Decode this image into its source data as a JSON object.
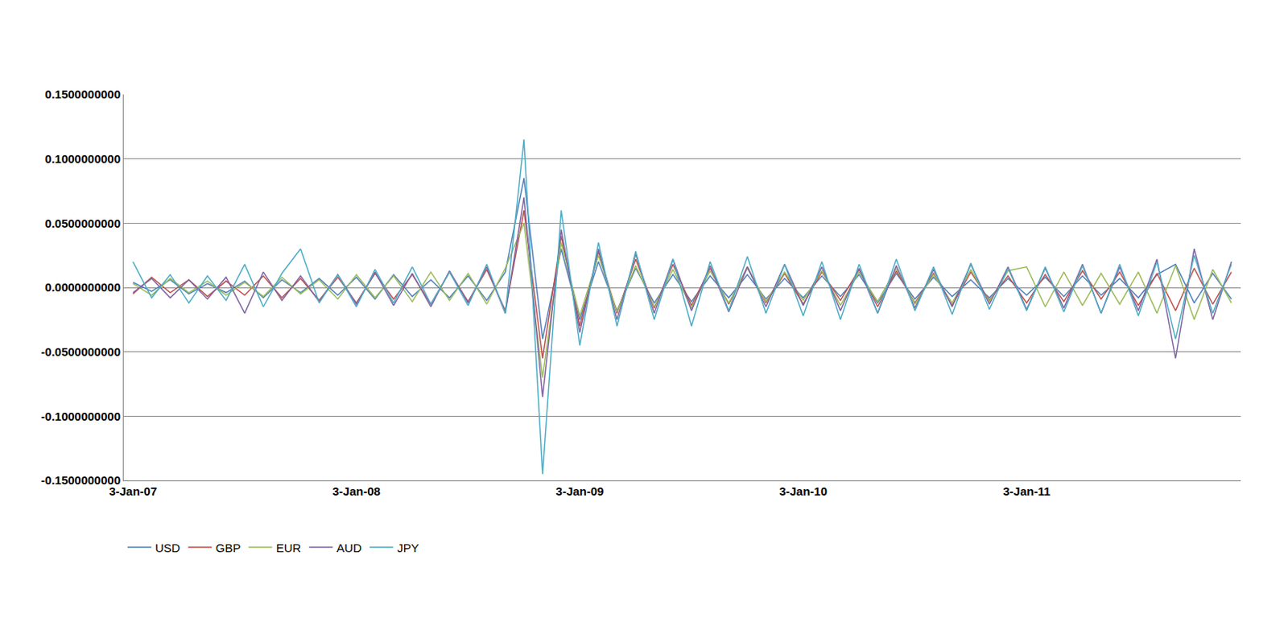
{
  "chart_data": {
    "type": "line",
    "categories": [
      "3-Jan-07",
      null,
      null,
      null,
      null,
      null,
      null,
      null,
      null,
      null,
      null,
      null,
      "3-Jan-08",
      null,
      null,
      null,
      null,
      null,
      null,
      null,
      null,
      null,
      null,
      null,
      "3-Jan-09",
      null,
      null,
      null,
      null,
      null,
      null,
      null,
      null,
      null,
      null,
      null,
      "3-Jan-10",
      null,
      null,
      null,
      null,
      null,
      null,
      null,
      null,
      null,
      null,
      null,
      "3-Jan-11",
      null,
      null,
      null,
      null,
      null,
      null,
      null,
      null,
      null,
      null,
      null
    ],
    "series": [
      {
        "name": "USD",
        "color": "#4f81bd",
        "values": [
          0.004,
          -0.003,
          0.006,
          -0.005,
          0.003,
          -0.004,
          0.005,
          -0.008,
          0.006,
          -0.004,
          0.007,
          -0.006,
          0.008,
          -0.009,
          0.01,
          -0.007,
          0.006,
          -0.008,
          0.009,
          -0.01,
          0.012,
          0.085,
          -0.04,
          0.03,
          -0.025,
          0.02,
          -0.018,
          0.015,
          -0.012,
          0.01,
          -0.011,
          0.009,
          -0.008,
          0.01,
          -0.009,
          0.007,
          -0.008,
          0.009,
          -0.007,
          0.01,
          -0.012,
          0.011,
          -0.009,
          0.008,
          -0.007,
          0.006,
          -0.008,
          0.007,
          -0.006,
          0.008,
          -0.007,
          0.009,
          -0.006,
          0.007,
          -0.008,
          0.01,
          0.018,
          -0.012,
          0.011,
          -0.009
        ]
      },
      {
        "name": "GBP",
        "color": "#c0504d",
        "values": [
          -0.005,
          0.008,
          -0.004,
          0.006,
          -0.007,
          0.005,
          -0.006,
          0.009,
          -0.008,
          0.007,
          -0.01,
          0.008,
          -0.012,
          0.011,
          -0.009,
          0.01,
          -0.013,
          0.012,
          -0.011,
          0.014,
          -0.018,
          0.06,
          -0.055,
          0.04,
          -0.03,
          0.028,
          -0.02,
          0.022,
          -0.016,
          0.018,
          -0.014,
          0.015,
          -0.013,
          0.016,
          -0.012,
          0.011,
          -0.013,
          0.012,
          -0.01,
          0.014,
          -0.015,
          0.013,
          -0.012,
          0.011,
          -0.014,
          0.012,
          -0.01,
          0.009,
          -0.012,
          0.01,
          -0.011,
          0.013,
          -0.009,
          0.012,
          -0.014,
          0.011,
          -0.018,
          0.015,
          -0.013,
          0.012
        ]
      },
      {
        "name": "EUR",
        "color": "#9bbb59",
        "values": [
          0.003,
          -0.006,
          0.007,
          -0.004,
          0.005,
          -0.006,
          0.004,
          -0.007,
          0.008,
          -0.005,
          0.006,
          -0.009,
          0.01,
          -0.008,
          0.009,
          -0.011,
          0.012,
          -0.01,
          0.011,
          -0.013,
          0.015,
          0.05,
          -0.07,
          0.035,
          -0.022,
          0.025,
          -0.019,
          0.017,
          -0.015,
          0.014,
          -0.016,
          0.013,
          -0.012,
          0.015,
          -0.011,
          0.012,
          -0.01,
          0.013,
          -0.014,
          0.012,
          -0.011,
          0.015,
          -0.013,
          0.01,
          -0.012,
          0.014,
          -0.011,
          0.013,
          0.016,
          -0.015,
          0.012,
          -0.014,
          0.011,
          -0.013,
          0.012,
          -0.02,
          0.017,
          -0.025,
          0.014,
          -0.012
        ]
      },
      {
        "name": "AUD",
        "color": "#8064a2",
        "values": [
          -0.004,
          0.007,
          -0.008,
          0.006,
          -0.009,
          0.008,
          -0.02,
          0.012,
          -0.01,
          0.009,
          -0.011,
          0.01,
          -0.013,
          0.012,
          -0.014,
          0.011,
          -0.015,
          0.013,
          -0.012,
          0.016,
          -0.02,
          0.07,
          -0.085,
          0.045,
          -0.035,
          0.03,
          -0.025,
          0.026,
          -0.02,
          0.022,
          -0.018,
          0.017,
          -0.019,
          0.016,
          -0.015,
          0.018,
          -0.014,
          0.016,
          -0.018,
          0.015,
          -0.02,
          0.017,
          -0.016,
          0.014,
          -0.015,
          0.018,
          -0.013,
          0.016,
          -0.017,
          0.015,
          -0.016,
          0.018,
          -0.02,
          0.016,
          -0.018,
          0.022,
          -0.055,
          0.03,
          -0.025,
          0.02
        ]
      },
      {
        "name": "JPY",
        "color": "#4bacc6",
        "values": [
          0.02,
          -0.008,
          0.01,
          -0.012,
          0.009,
          -0.01,
          0.018,
          -0.015,
          0.011,
          0.03,
          -0.012,
          0.01,
          -0.015,
          0.014,
          -0.012,
          0.016,
          -0.013,
          0.012,
          -0.014,
          0.018,
          -0.02,
          0.115,
          -0.145,
          0.06,
          -0.045,
          0.035,
          -0.03,
          0.028,
          -0.025,
          0.022,
          -0.03,
          0.02,
          -0.018,
          0.024,
          -0.02,
          0.018,
          -0.022,
          0.02,
          -0.025,
          0.018,
          -0.02,
          0.022,
          -0.018,
          0.016,
          -0.021,
          0.019,
          -0.017,
          0.015,
          -0.018,
          0.016,
          -0.019,
          0.017,
          -0.02,
          0.018,
          -0.022,
          0.02,
          -0.04,
          0.025,
          -0.02,
          0.018
        ]
      }
    ],
    "ylim": [
      -0.15,
      0.15
    ],
    "yticks": [
      {
        "value": -0.15,
        "label": "-0.1500000000"
      },
      {
        "value": -0.1,
        "label": "-0.1000000000"
      },
      {
        "value": -0.05,
        "label": "-0.0500000000"
      },
      {
        "value": 0,
        "label": "0.0000000000"
      },
      {
        "value": 0.05,
        "label": "0.0500000000"
      },
      {
        "value": 0.1,
        "label": "0.1000000000"
      },
      {
        "value": 0.15,
        "label": "0.1500000000"
      }
    ],
    "grid": true,
    "legend": "bottom left"
  }
}
